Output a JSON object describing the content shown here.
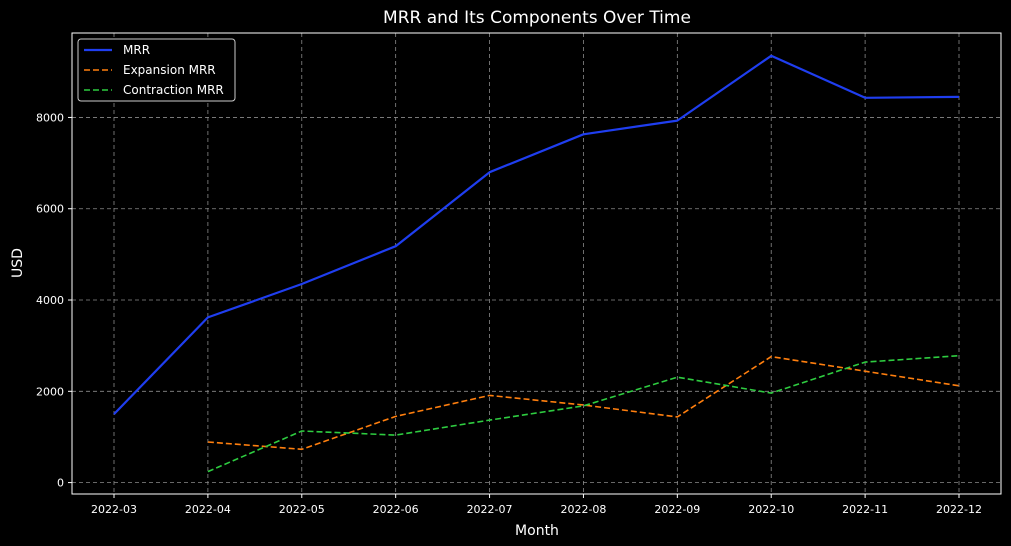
{
  "chart_data": {
    "type": "line",
    "title": "MRR and Its Components Over Time",
    "xlabel": "Month",
    "ylabel": "USD",
    "categories": [
      "2022-03",
      "2022-04",
      "2022-05",
      "2022-06",
      "2022-07",
      "2022-08",
      "2022-09",
      "2022-10",
      "2022-11",
      "2022-12"
    ],
    "yticks": [
      0,
      2000,
      4000,
      6000,
      8000
    ],
    "ylim": [
      -250,
      9850
    ],
    "grid": true,
    "legend_position": "top-left",
    "series": [
      {
        "name": "MRR",
        "color": "#1f3ef0",
        "style": "solid",
        "values": [
          1500,
          3620,
          4350,
          5180,
          6800,
          7630,
          7930,
          9350,
          8430,
          8450
        ]
      },
      {
        "name": "Expansion MRR",
        "color": "#ff7f0e",
        "style": "dashed",
        "values": [
          null,
          890,
          730,
          1450,
          1910,
          1700,
          1440,
          2760,
          2440,
          2120
        ]
      },
      {
        "name": "Contraction MRR",
        "color": "#2ecc40",
        "style": "dashed",
        "values": [
          null,
          240,
          1130,
          1040,
          1370,
          1680,
          2310,
          1960,
          2640,
          2780
        ]
      }
    ]
  }
}
